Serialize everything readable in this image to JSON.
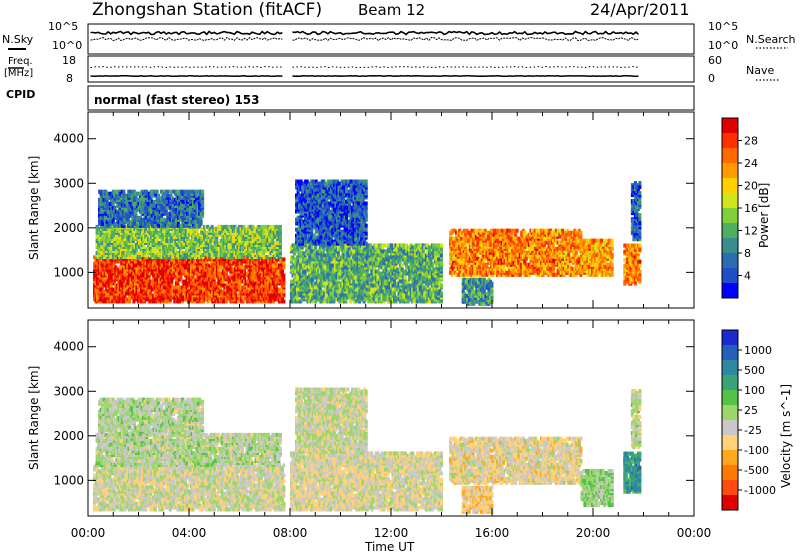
{
  "header": {
    "title": "Zhongshan Station (fitACF)",
    "beam": "Beam 12",
    "date": "24/Apr/2011"
  },
  "top_panels": {
    "nsky_label": "N.Sky",
    "nsearch_label": "N.Search",
    "freq_label_1": "Freq.",
    "freq_label_2": "[MHz]",
    "nave_label": "Nave",
    "cpid_label": "CPID",
    "cpid_text": "normal (fast stereo) 153",
    "noise_ticks": [
      "10^5",
      "10^0"
    ],
    "freq_ticks": [
      "18",
      "8"
    ],
    "nave_ticks": [
      "60",
      "0"
    ]
  },
  "colors": {
    "power_scale": [
      "#0000ff",
      "#1f4fc8",
      "#2a6db0",
      "#3a8d8f",
      "#4fae5e",
      "#7fcf3a",
      "#cfe61a",
      "#ffd000",
      "#ff9a00",
      "#ff6a00",
      "#ff3000",
      "#e00000"
    ],
    "velocity_scale": [
      "#1a2ad0",
      "#2560b8",
      "#2e88a0",
      "#3aa37a",
      "#55c24a",
      "#9ad66a",
      "#c8c8c8",
      "#ffd27a",
      "#ffa81a",
      "#ff7a00",
      "#ff4a10",
      "#e00000"
    ]
  },
  "chart_data": [
    {
      "type": "heatmap",
      "title": "",
      "xlabel": "Time UT",
      "ylabel": "Slant Range [km]",
      "x_ticks": [
        "00:00",
        "04:00",
        "08:00",
        "12:00",
        "16:00",
        "20:00",
        "00:00"
      ],
      "y_ticks": [
        "1000",
        "2000",
        "3000",
        "4000"
      ],
      "ylim": [
        200,
        4600
      ],
      "xlim_hours": [
        0,
        24
      ],
      "colorbar_label": "Power [dB]",
      "colorbar_ticks": [
        "28",
        "24",
        "20",
        "16",
        "12",
        "8",
        "4"
      ],
      "clim": [
        0,
        32
      ],
      "regions": [
        {
          "t0": 0.2,
          "t1": 7.7,
          "r0": 300,
          "r1": 1300,
          "value": 28
        },
        {
          "t0": 0.3,
          "t1": 7.6,
          "r0": 1300,
          "r1": 2000,
          "value": 14
        },
        {
          "t0": 0.4,
          "t1": 4.5,
          "r0": 2000,
          "r1": 2800,
          "value": 7
        },
        {
          "t0": 8.0,
          "t1": 14.0,
          "r0": 300,
          "r1": 1600,
          "value": 12
        },
        {
          "t0": 8.2,
          "t1": 11.0,
          "r0": 1600,
          "r1": 3000,
          "value": 5
        },
        {
          "t0": 14.3,
          "t1": 19.5,
          "r0": 900,
          "r1": 1900,
          "value": 24
        },
        {
          "t0": 14.8,
          "t1": 16.0,
          "r0": 250,
          "r1": 800,
          "value": 10
        },
        {
          "t0": 19.5,
          "t1": 20.7,
          "r0": 900,
          "r1": 1700,
          "value": 22
        },
        {
          "t0": 21.2,
          "t1": 21.8,
          "r0": 700,
          "r1": 1600,
          "value": 24
        },
        {
          "t0": 21.5,
          "t1": 21.8,
          "r0": 1700,
          "r1": 3000,
          "value": 6
        }
      ]
    },
    {
      "type": "heatmap",
      "title": "",
      "xlabel": "Time UT",
      "ylabel": "Slant Range [km]",
      "x_ticks": [
        "00:00",
        "04:00",
        "08:00",
        "12:00",
        "16:00",
        "20:00",
        "00:00"
      ],
      "y_ticks": [
        "1000",
        "2000",
        "3000",
        "4000"
      ],
      "ylim": [
        200,
        4600
      ],
      "xlim_hours": [
        0,
        24
      ],
      "colorbar_label": "Velocity [m s^-1]",
      "colorbar_ticks": [
        "1000",
        "500",
        "100",
        "25",
        "-25",
        "-100",
        "-500",
        "-1000"
      ],
      "clim": [
        -1200,
        1200
      ],
      "regions": [
        {
          "t0": 0.2,
          "t1": 7.7,
          "r0": 300,
          "r1": 1300,
          "value": -100
        },
        {
          "t0": 0.3,
          "t1": 7.6,
          "r0": 1300,
          "r1": 2000,
          "value": 0
        },
        {
          "t0": 0.4,
          "t1": 4.5,
          "r0": 2000,
          "r1": 2800,
          "value": 10
        },
        {
          "t0": 8.0,
          "t1": 14.0,
          "r0": 300,
          "r1": 1600,
          "value": -150
        },
        {
          "t0": 8.2,
          "t1": 11.0,
          "r0": 1600,
          "r1": 3000,
          "value": -60
        },
        {
          "t0": 14.3,
          "t1": 19.5,
          "r0": 900,
          "r1": 1900,
          "value": -200
        },
        {
          "t0": 14.8,
          "t1": 16.0,
          "r0": 250,
          "r1": 800,
          "value": -300
        },
        {
          "t0": 19.5,
          "t1": 20.7,
          "r0": 400,
          "r1": 1200,
          "value": 120
        },
        {
          "t0": 21.2,
          "t1": 21.8,
          "r0": 700,
          "r1": 1600,
          "value": 600
        },
        {
          "t0": 21.5,
          "t1": 21.8,
          "r0": 1700,
          "r1": 3000,
          "value": -30
        }
      ]
    }
  ]
}
